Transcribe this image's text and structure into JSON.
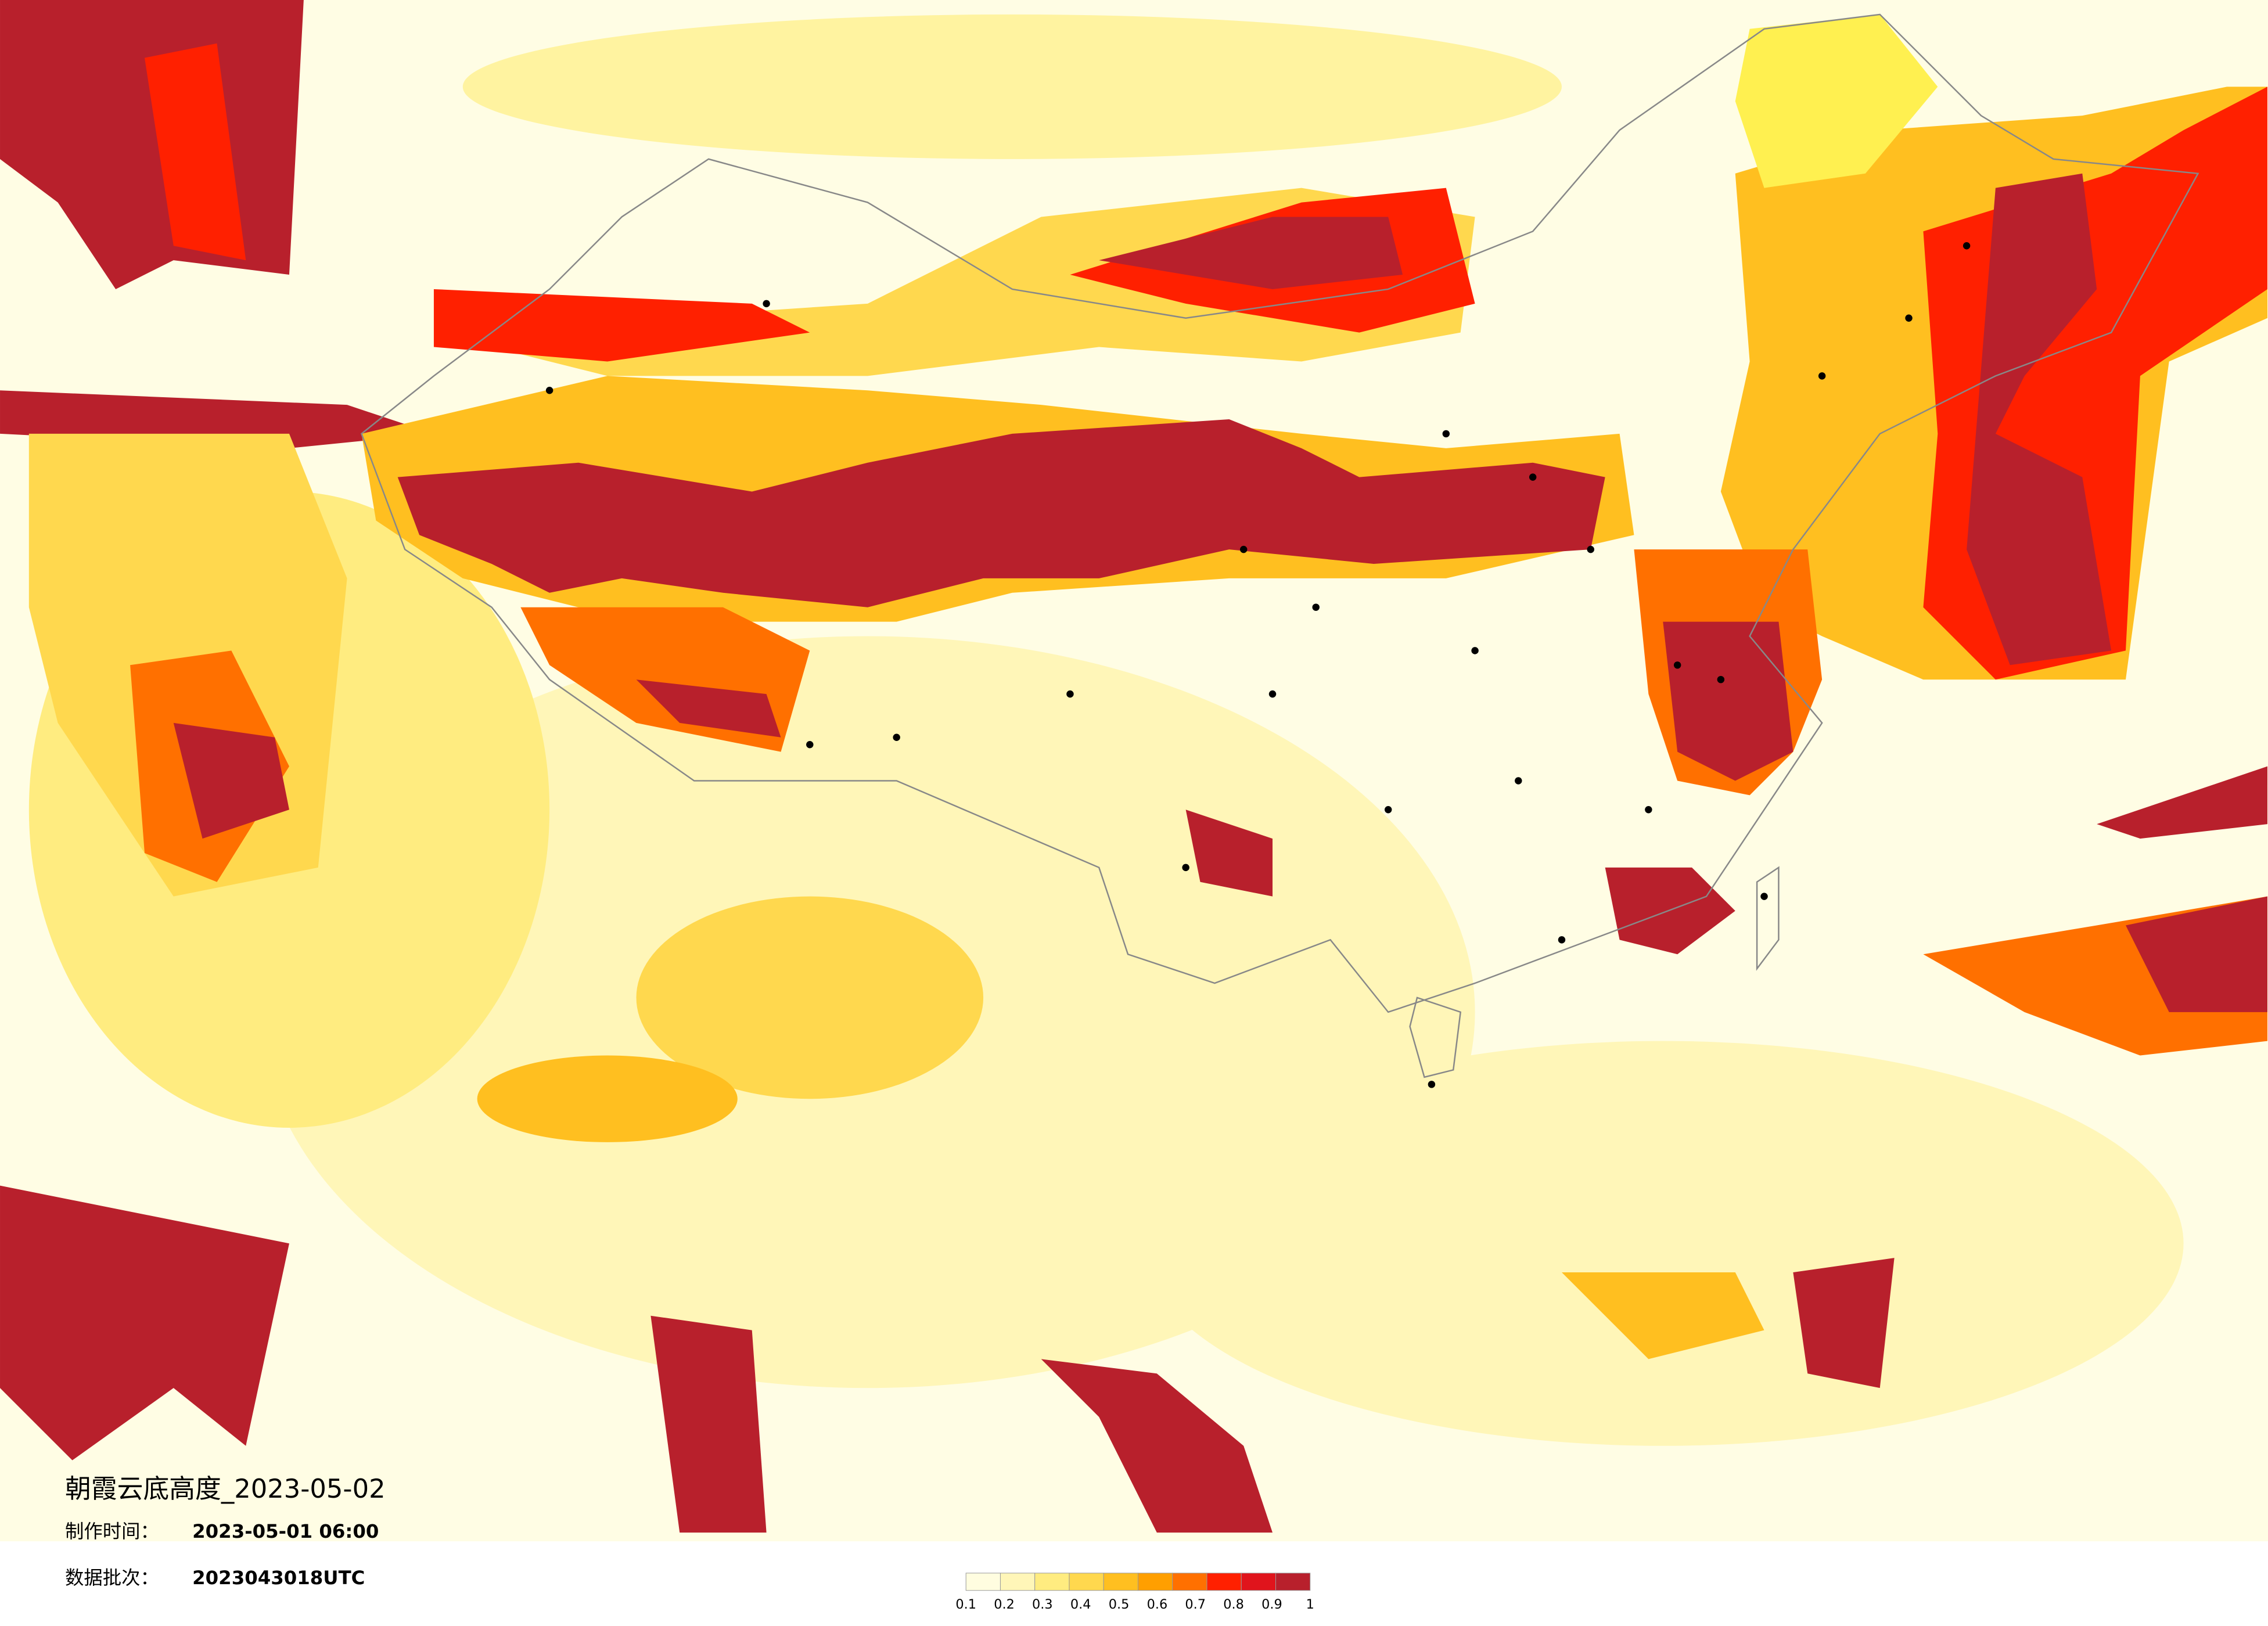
{
  "header": {
    "title": "朝霞云底高度_2023-05-02",
    "made_label": "制作时间：",
    "made_time": "2023-05-01 06:00",
    "batch_label": "数据批次：",
    "batch": "2023043018UTC"
  },
  "legend": {
    "colors": [
      "#fffde0",
      "#fff6b8",
      "#ffec80",
      "#ffd84e",
      "#ffbf20",
      "#ff9f00",
      "#ff7000",
      "#ff2000",
      "#e0141c",
      "#b8202c"
    ],
    "ticks": [
      0.1,
      0.2,
      0.3,
      0.4,
      0.5,
      0.6,
      0.7,
      0.8,
      0.9,
      1
    ]
  }
}
